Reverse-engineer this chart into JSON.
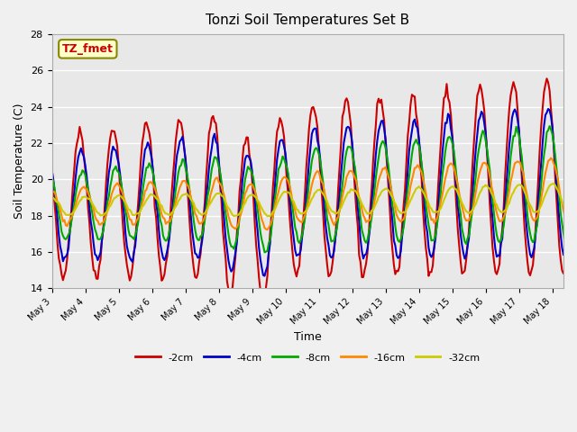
{
  "title": "Tonzi Soil Temperatures Set B",
  "xlabel": "Time",
  "ylabel": "Soil Temperature (C)",
  "ylim": [
    14,
    28
  ],
  "yticks": [
    14,
    16,
    18,
    20,
    22,
    24,
    26,
    28
  ],
  "xlim": [
    0,
    368
  ],
  "xtick_positions": [
    0,
    24,
    48,
    72,
    96,
    120,
    144,
    168,
    192,
    216,
    240,
    264,
    288,
    312,
    336,
    360
  ],
  "xtick_labels": [
    "May 3",
    "May 4",
    "May 5",
    "May 6",
    "May 7",
    "May 8",
    "May 9",
    "May 10",
    "May 11",
    "May 12",
    "May 13",
    "May 14",
    "May 15",
    "May 16",
    "May 17",
    "May 18"
  ],
  "fig_bg": "#f0f0f0",
  "plot_bg": "#e8e8e8",
  "annotation_text": "TZ_fmet",
  "annotation_color": "#cc0000",
  "annotation_bg": "#ffffcc",
  "annotation_edge": "#888800",
  "grid_color": "#ffffff",
  "line_colors": {
    "-2cm": "#cc0000",
    "-4cm": "#0000cc",
    "-8cm": "#00aa00",
    "-16cm": "#ff8800",
    "-32cm": "#cccc00"
  },
  "line_widths": {
    "-2cm": 1.5,
    "-4cm": 1.5,
    "-8cm": 1.5,
    "-16cm": 1.5,
    "-32cm": 1.5
  }
}
